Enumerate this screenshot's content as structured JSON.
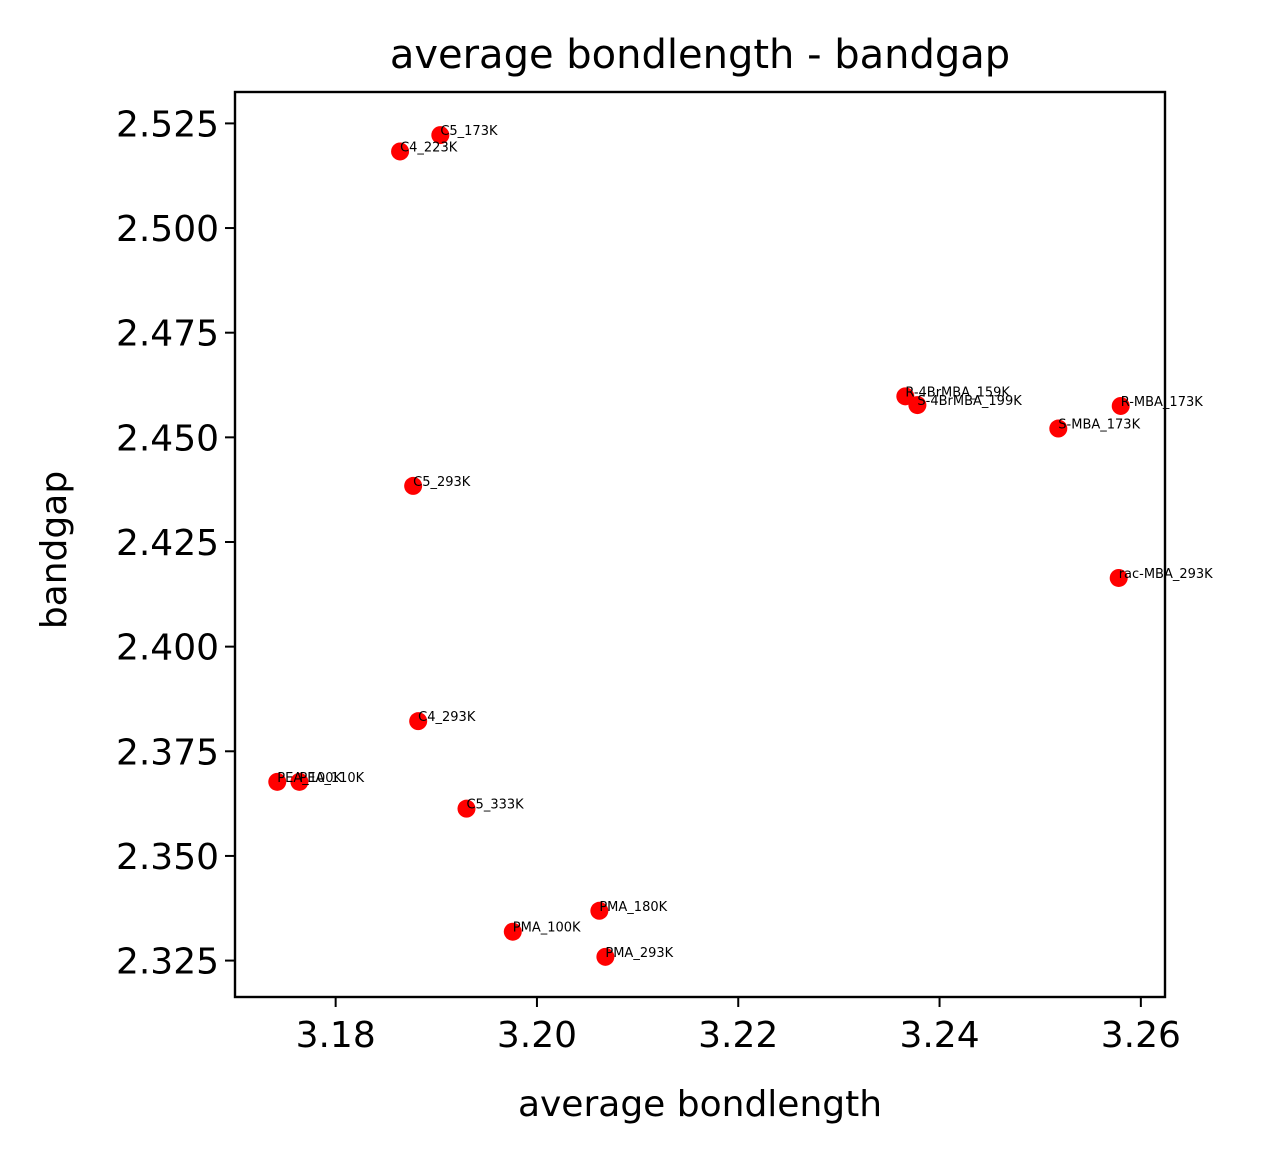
{
  "chart_data": {
    "type": "scatter",
    "title": "average bondlength - bandgap",
    "xlabel": "average bondlength",
    "ylabel": "bandgap",
    "xlim": [
      3.17,
      3.2624
    ],
    "ylim": [
      2.3163,
      2.5325
    ],
    "xticks": [
      3.18,
      3.2,
      3.22,
      3.24,
      3.26
    ],
    "xtick_labels": [
      "3.18",
      "3.20",
      "3.22",
      "3.24",
      "3.26"
    ],
    "yticks": [
      2.325,
      2.35,
      2.375,
      2.4,
      2.425,
      2.45,
      2.475,
      2.5,
      2.525
    ],
    "ytick_labels": [
      "2.325",
      "2.350",
      "2.375",
      "2.400",
      "2.425",
      "2.450",
      "2.475",
      "2.500",
      "2.525"
    ],
    "marker_color": "#ff0000",
    "grid": false,
    "points": [
      {
        "label": "C5_173K",
        "x": 3.1904,
        "y": 2.5222
      },
      {
        "label": "C4_223K",
        "x": 3.1864,
        "y": 2.5183
      },
      {
        "label": "R-4BrMBA_159K",
        "x": 3.2366,
        "y": 2.4598
      },
      {
        "label": "S-4BrMBA_199K",
        "x": 3.2378,
        "y": 2.4577
      },
      {
        "label": "R-MBA_173K",
        "x": 3.258,
        "y": 2.4575
      },
      {
        "label": "S-MBA_173K",
        "x": 3.2518,
        "y": 2.4521
      },
      {
        "label": "C5_293K",
        "x": 3.1877,
        "y": 2.4384
      },
      {
        "label": "rac-MBA_293K",
        "x": 3.2578,
        "y": 2.4164
      },
      {
        "label": "C4_293K",
        "x": 3.1882,
        "y": 2.3822
      },
      {
        "label": "PEA_100K",
        "x": 3.1742,
        "y": 2.3677
      },
      {
        "label": "PEA_110K",
        "x": 3.1764,
        "y": 2.3677
      },
      {
        "label": "C5_333K",
        "x": 3.193,
        "y": 2.3613
      },
      {
        "label": "PMA_180K",
        "x": 3.2062,
        "y": 2.3369
      },
      {
        "label": "PMA_100K",
        "x": 3.1976,
        "y": 2.3319
      },
      {
        "label": "PMA_293K",
        "x": 3.2068,
        "y": 2.3259
      }
    ]
  }
}
